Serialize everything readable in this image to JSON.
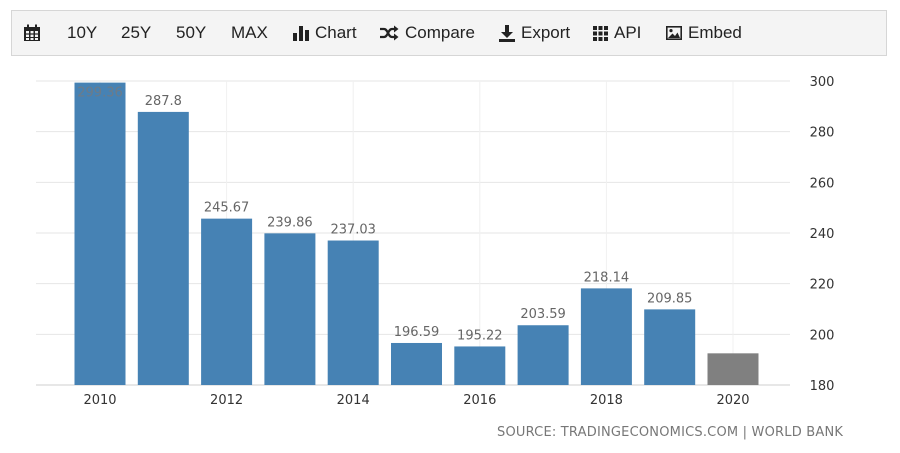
{
  "toolbar": {
    "calendar_icon": "calendar-icon",
    "range_10y": "10Y",
    "range_25y": "25Y",
    "range_50y": "50Y",
    "range_max": "MAX",
    "chart_label": "Chart",
    "compare_label": "Compare",
    "export_label": "Export",
    "api_label": "API",
    "embed_label": "Embed"
  },
  "colors": {
    "bar": "#4682b4",
    "bar_forecast": "#808080",
    "grid": "#e6e6e6",
    "toolbar_bg": "#f4f4f4"
  },
  "chart_data": {
    "type": "bar",
    "categories": [
      "2010",
      "2011",
      "2012",
      "2013",
      "2014",
      "2015",
      "2016",
      "2017",
      "2018",
      "2019",
      "2020"
    ],
    "values": [
      299.36,
      287.8,
      245.67,
      239.86,
      237.03,
      196.59,
      195.22,
      203.59,
      218.14,
      209.85,
      192.5
    ],
    "data_labels": [
      "299.36",
      "287.8",
      "245.67",
      "239.86",
      "237.03",
      "196.59",
      "195.22",
      "203.59",
      "218.14",
      "209.85",
      ""
    ],
    "bar_colors": [
      "#4682b4",
      "#4682b4",
      "#4682b4",
      "#4682b4",
      "#4682b4",
      "#4682b4",
      "#4682b4",
      "#4682b4",
      "#4682b4",
      "#4682b4",
      "#808080"
    ],
    "x_tick_labels": [
      "2010",
      "2012",
      "2014",
      "2016",
      "2018",
      "2020"
    ],
    "y_ticks": [
      180,
      200,
      220,
      240,
      260,
      280,
      300
    ],
    "ylim": [
      180,
      300
    ],
    "y_axis_side": "right",
    "grid": true,
    "title": "",
    "xlabel": "",
    "ylabel": ""
  },
  "source": "SOURCE: TRADINGECONOMICS.COM | WORLD BANK"
}
